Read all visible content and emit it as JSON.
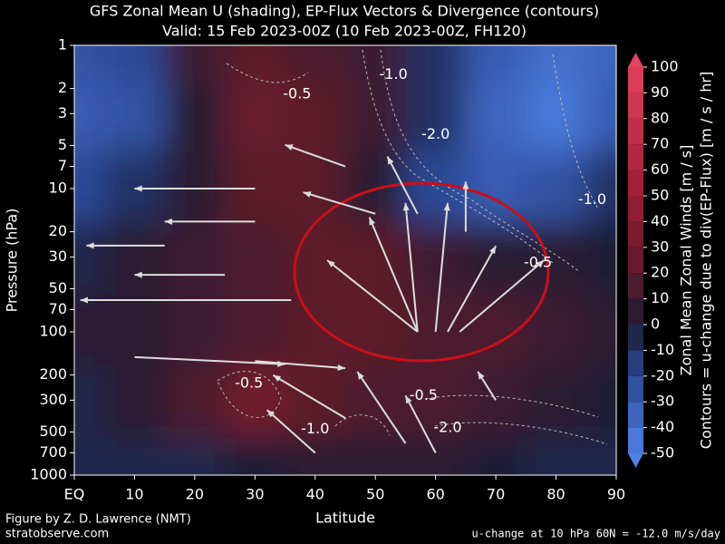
{
  "chart_data": {
    "type": "contour",
    "title": "GFS Zonal Mean U (shading), EP-Flux Vectors & Divergence (contours)",
    "subtitle": "Valid: 15 Feb 2023-00Z  (10 Feb 2023-00Z, FH120)",
    "x_label": "Latitude",
    "y_label": "Pressure (hPa)",
    "colorbar_label": "Zonal Mean Zonal Winds  [m / s]",
    "colorbar_label2": "Contours = u-change due to div(EP-Flux) [m / s / hr]",
    "credit": "Figure by Z. D. Lawrence (NMT)",
    "site": "stratobserve.com",
    "note": "u-change at 10 hPa 60N = -12.0 m/s/day",
    "xlim": [
      0,
      90
    ],
    "xticks": [
      {
        "value": 0,
        "label": "EQ"
      },
      10,
      20,
      30,
      40,
      50,
      60,
      70,
      80,
      90
    ],
    "ylim": [
      1,
      1000
    ],
    "ylog": true,
    "yinvert": true,
    "yticks": [
      1,
      2,
      3,
      5,
      7,
      10,
      20,
      30,
      50,
      70,
      100,
      200,
      300,
      500,
      700,
      1000
    ],
    "clim": [
      -50,
      100
    ],
    "cticks": [
      -50,
      -40,
      -30,
      -20,
      -10,
      0,
      10,
      20,
      30,
      40,
      50,
      60,
      70,
      80,
      90,
      100
    ],
    "colors": {
      "-50": "#4f82e6",
      "-20": "#2b4896",
      "0": "#1c1c34",
      "20": "#5c1a2c",
      "50": "#9c1c34",
      "100": "#e2425e"
    },
    "u_field": {
      "lat": [
        0,
        10,
        20,
        30,
        40,
        50,
        60,
        70,
        80,
        90
      ],
      "p": [
        1,
        3,
        10,
        30,
        100,
        300,
        1000
      ],
      "values": [
        [
          -25,
          -20,
          10,
          20,
          15,
          10,
          -10,
          -30,
          -40,
          -35
        ],
        [
          -30,
          -25,
          5,
          25,
          20,
          10,
          -10,
          -35,
          -45,
          -30
        ],
        [
          -20,
          -10,
          5,
          20,
          20,
          5,
          -20,
          -30,
          -25,
          -10
        ],
        [
          -5,
          5,
          10,
          15,
          20,
          20,
          10,
          5,
          5,
          0
        ],
        [
          5,
          5,
          10,
          15,
          20,
          20,
          15,
          15,
          10,
          5
        ],
        [
          -5,
          5,
          15,
          30,
          20,
          15,
          15,
          10,
          5,
          0
        ],
        [
          -5,
          -5,
          -5,
          0,
          5,
          5,
          5,
          0,
          -5,
          -5
        ]
      ]
    },
    "vectors": {
      "lat": [
        57,
        57,
        57,
        60,
        62,
        64,
        36,
        10,
        30,
        45,
        55,
        40,
        60,
        30,
        25,
        15,
        50,
        57,
        65,
        45,
        30,
        70
      ],
      "p": [
        100,
        100,
        100,
        100,
        100,
        100,
        60,
        150,
        160,
        400,
        600,
        700,
        700,
        17,
        40,
        25,
        15,
        15,
        20,
        7,
        10,
        300
      ],
      "dlat": [
        -15,
        -8,
        -2,
        2,
        8,
        14,
        -35,
        25,
        15,
        -12,
        -8,
        -8,
        -5,
        -15,
        -15,
        -13,
        -12,
        -5,
        0,
        -10,
        -20,
        -3
      ],
      "dlogp": [
        -0.5,
        -0.8,
        -0.9,
        -0.9,
        -0.6,
        -0.5,
        0,
        0.05,
        0.05,
        -0.3,
        -0.5,
        -0.3,
        -0.4,
        0,
        0,
        0,
        -0.15,
        -0.4,
        -0.35,
        -0.15,
        0,
        -0.2
      ]
    },
    "contours": {
      "lat": [
        37,
        53,
        60,
        77,
        86,
        58,
        29,
        62,
        40
      ],
      "p": [
        2.2,
        1.6,
        4.2,
        33,
        12,
        280,
        230,
        470,
        480
      ],
      "values": [
        -0.5,
        -1,
        -2,
        -0.5,
        -1,
        -0.5,
        -0.5,
        -2,
        -1
      ],
      "value_labels": [
        "-0.5",
        "-1.0",
        "-2.0",
        "-0.5",
        "-1.0",
        "-0.5",
        "-0.5",
        "-2.0",
        "-1.0"
      ]
    }
  }
}
